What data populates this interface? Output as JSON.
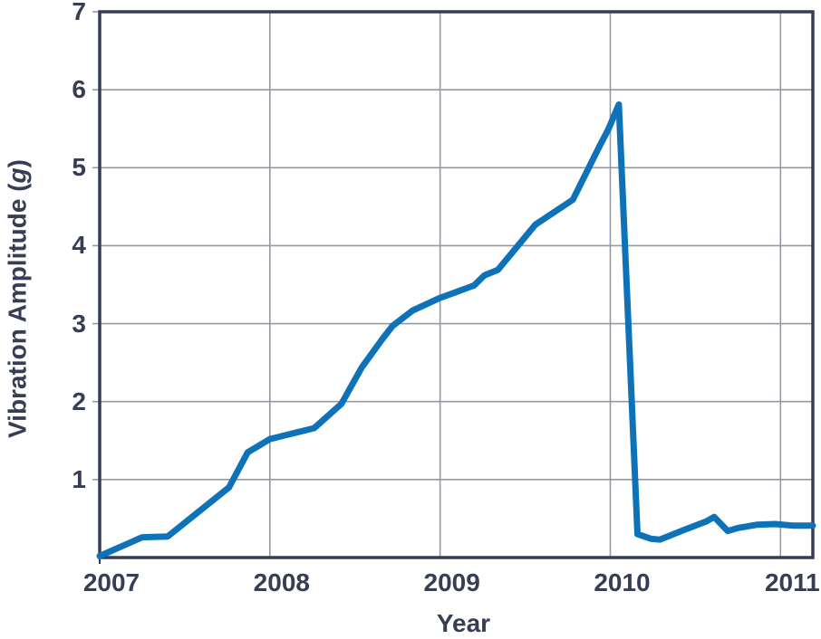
{
  "labels": {
    "xlabel": "Year",
    "ylabel_pre": "Vibration Amplitude (",
    "ylabel_italic": "g",
    "ylabel_post": ")"
  },
  "colors": {
    "background": "#ffffff",
    "line": "#0e72b8",
    "axis": "#363d54",
    "grid": "#9399a9",
    "text": "#363d54"
  },
  "chart_data": {
    "type": "line",
    "title": "",
    "xlabel": "Year",
    "ylabel": "Vibration Amplitude (g)",
    "xlim": [
      2007,
      2011.19
    ],
    "ylim": [
      0,
      7
    ],
    "x_ticks": [
      2007,
      2008,
      2009,
      2010,
      2011
    ],
    "y_ticks": [
      1,
      2,
      3,
      4,
      5,
      6,
      7
    ],
    "grid": true,
    "legend": "none",
    "series": [
      {
        "name": "vibration-amplitude",
        "x": [
          2007.0,
          2007.25,
          2007.4,
          2007.76,
          2007.87,
          2008.0,
          2008.26,
          2008.42,
          2008.54,
          2008.66,
          2008.72,
          2008.84,
          2009.0,
          2009.2,
          2009.26,
          2009.34,
          2009.56,
          2009.78,
          2009.94,
          2009.99,
          2010.05,
          2010.16,
          2010.24,
          2010.29,
          2010.44,
          2010.56,
          2010.61,
          2010.69,
          2010.75,
          2010.86,
          2010.97,
          2011.07,
          2011.19
        ],
        "y": [
          0.02,
          0.26,
          0.27,
          0.9,
          1.35,
          1.52,
          1.66,
          1.97,
          2.44,
          2.8,
          2.97,
          3.17,
          3.33,
          3.49,
          3.62,
          3.69,
          4.27,
          4.59,
          5.29,
          5.5,
          5.81,
          0.3,
          0.24,
          0.23,
          0.36,
          0.46,
          0.52,
          0.34,
          0.38,
          0.42,
          0.43,
          0.41,
          0.41
        ]
      }
    ]
  }
}
